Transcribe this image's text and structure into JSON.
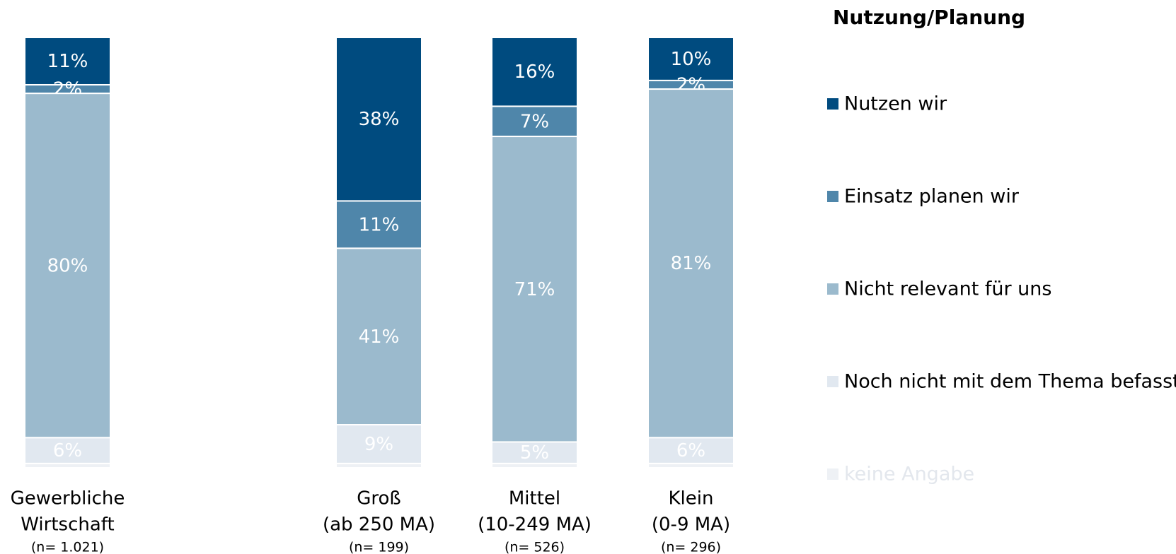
{
  "chart_data": {
    "type": "stacked_bar",
    "legend_title": "Nutzung/Planung",
    "categories": [
      [
        "Gewerbliche",
        "Wirtschaft"
      ],
      [
        "Groß",
        "(ab 250 MA)"
      ],
      [
        "Mittel",
        "(10-249 MA)"
      ],
      [
        "Klein",
        "(0-9 MA)"
      ]
    ],
    "sample_sizes": [
      "(n= 1.021)",
      "(n= 199)",
      "(n= 526)",
      "(n= 296)"
    ],
    "ylim": [
      0,
      100
    ],
    "legend": "right",
    "series": [
      {
        "name": "Nutzen wir",
        "color": "#004b7f",
        "values": [
          11,
          38,
          16,
          10
        ],
        "value_labels": [
          "11%",
          "38%",
          "16%",
          "10%"
        ]
      },
      {
        "name": "Einsatz planen wir",
        "color": "#4f86aa",
        "values": [
          2,
          11,
          7,
          2
        ],
        "value_labels": [
          "2%",
          "11%",
          "7%",
          "2%"
        ]
      },
      {
        "name": "Nicht relevant für uns",
        "color": "#9bbacd",
        "values": [
          80,
          41,
          71,
          81
        ],
        "value_labels": [
          "80%",
          "41%",
          "71%",
          "81%"
        ]
      },
      {
        "name": "Noch nicht mit dem Thema befasst",
        "color": "#e1e8f0",
        "values": [
          6,
          9,
          5,
          6
        ],
        "value_labels": [
          "6%",
          "9%",
          "5%",
          "6%"
        ]
      },
      {
        "name": "keine Angabe",
        "color": "#eef1f5",
        "values": [
          1,
          1,
          1,
          1
        ]
      }
    ]
  }
}
